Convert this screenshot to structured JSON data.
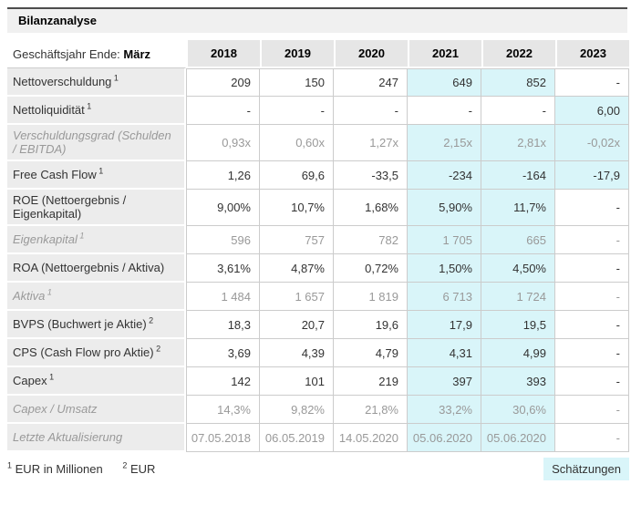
{
  "title": "Bilanzanalyse",
  "table": {
    "header_label_prefix": "Geschäftsjahr Ende: ",
    "header_label_bold": "März",
    "years": [
      "2018",
      "2019",
      "2020",
      "2021",
      "2022",
      "2023"
    ],
    "rows": [
      {
        "label": "Nettoverschuldung",
        "sup": "1",
        "muted": false,
        "values": [
          "209",
          "150",
          "247",
          "649",
          "852",
          "-"
        ],
        "highlight": [
          false,
          false,
          false,
          true,
          true,
          false
        ]
      },
      {
        "label": "Nettoliquidität",
        "sup": "1",
        "muted": false,
        "values": [
          "-",
          "-",
          "-",
          "-",
          "-",
          "6,00"
        ],
        "highlight": [
          false,
          false,
          false,
          false,
          false,
          true
        ]
      },
      {
        "label": "Verschuldungsgrad (Schulden / EBITDA)",
        "sup": "",
        "muted": true,
        "values": [
          "0,93x",
          "0,60x",
          "1,27x",
          "2,15x",
          "2,81x",
          "-0,02x"
        ],
        "highlight": [
          false,
          false,
          false,
          true,
          true,
          true
        ]
      },
      {
        "label": "Free Cash Flow",
        "sup": "1",
        "muted": false,
        "values": [
          "1,26",
          "69,6",
          "-33,5",
          "-234",
          "-164",
          "-17,9"
        ],
        "highlight": [
          false,
          false,
          false,
          true,
          true,
          true
        ]
      },
      {
        "label": "ROE (Nettoergebnis / Eigenkapital)",
        "sup": "",
        "muted": false,
        "values": [
          "9,00%",
          "10,7%",
          "1,68%",
          "5,90%",
          "11,7%",
          "-"
        ],
        "highlight": [
          false,
          false,
          false,
          true,
          true,
          false
        ]
      },
      {
        "label": "Eigenkapital",
        "sup": "1",
        "muted": true,
        "values": [
          "596",
          "757",
          "782",
          "1 705",
          "665",
          "-"
        ],
        "highlight": [
          false,
          false,
          false,
          true,
          true,
          false
        ]
      },
      {
        "label": "ROA (Nettoergebnis / Aktiva)",
        "sup": "",
        "muted": false,
        "values": [
          "3,61%",
          "4,87%",
          "0,72%",
          "1,50%",
          "4,50%",
          "-"
        ],
        "highlight": [
          false,
          false,
          false,
          true,
          true,
          false
        ]
      },
      {
        "label": "Aktiva",
        "sup": "1",
        "muted": true,
        "values": [
          "1 484",
          "1 657",
          "1 819",
          "6 713",
          "1 724",
          "-"
        ],
        "highlight": [
          false,
          false,
          false,
          true,
          true,
          false
        ]
      },
      {
        "label": "BVPS (Buchwert je Aktie)",
        "sup": "2",
        "muted": false,
        "values": [
          "18,3",
          "20,7",
          "19,6",
          "17,9",
          "19,5",
          "-"
        ],
        "highlight": [
          false,
          false,
          false,
          true,
          true,
          false
        ]
      },
      {
        "label": "CPS (Cash Flow pro Aktie)",
        "sup": "2",
        "muted": false,
        "values": [
          "3,69",
          "4,39",
          "4,79",
          "4,31",
          "4,99",
          "-"
        ],
        "highlight": [
          false,
          false,
          false,
          true,
          true,
          false
        ]
      },
      {
        "label": "Capex",
        "sup": "1",
        "muted": false,
        "values": [
          "142",
          "101",
          "219",
          "397",
          "393",
          "-"
        ],
        "highlight": [
          false,
          false,
          false,
          true,
          true,
          false
        ]
      },
      {
        "label": "Capex / Umsatz",
        "sup": "",
        "muted": true,
        "values": [
          "14,3%",
          "9,82%",
          "21,8%",
          "33,2%",
          "30,6%",
          "-"
        ],
        "highlight": [
          false,
          false,
          false,
          true,
          true,
          false
        ]
      },
      {
        "label": "Letzte Aktualisierung",
        "sup": "",
        "muted": true,
        "values": [
          "07.05.2018",
          "06.05.2019",
          "14.05.2020",
          "05.06.2020",
          "05.06.2020",
          "-"
        ],
        "highlight": [
          false,
          false,
          false,
          true,
          true,
          false
        ]
      }
    ]
  },
  "footnotes": [
    {
      "sup": "1",
      "text": "EUR in Millionen"
    },
    {
      "sup": "2",
      "text": "EUR"
    }
  ],
  "legend": {
    "estimates_label": "Schätzungen"
  },
  "colors": {
    "highlight": "#d9f5f9",
    "header_gray": "#e6e6e6",
    "label_gray": "#ececec",
    "border": "#cccccc",
    "muted_text": "#999999",
    "titlebar_border": "#4d4d4d"
  }
}
